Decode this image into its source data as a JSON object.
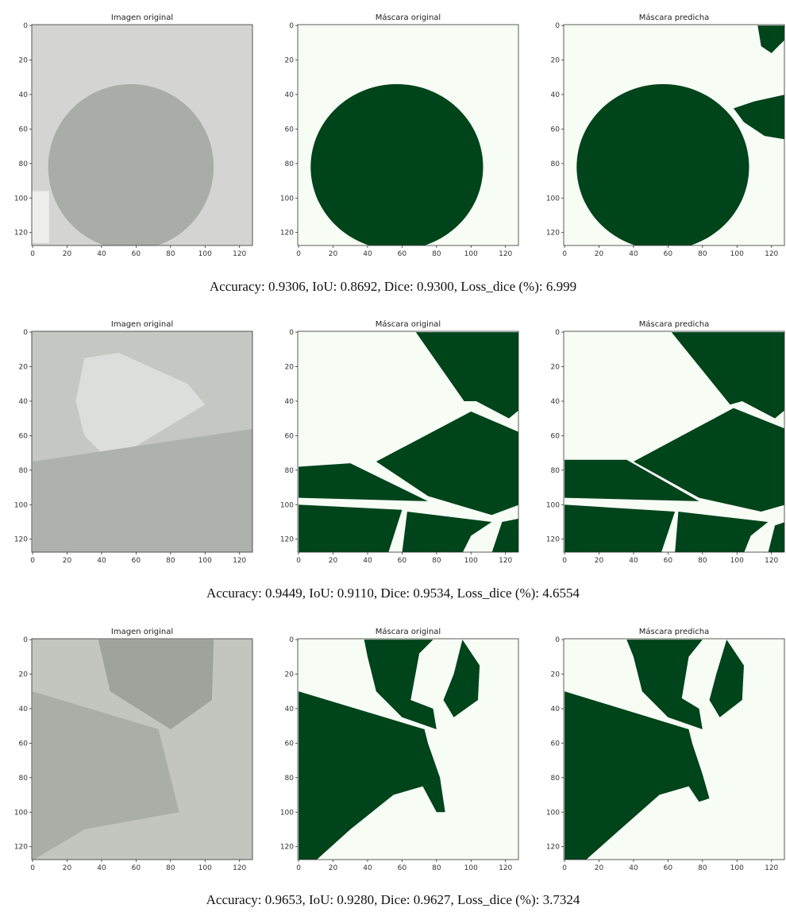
{
  "rows": [
    {
      "panels": [
        {
          "title": "Imagen original"
        },
        {
          "title": "Máscara original"
        },
        {
          "title": "Máscara predicha"
        }
      ],
      "caption": "Accuracy: 0.9306, IoU: 0.8692, Dice: 0.9300, Loss_dice (%): 6.999"
    },
    {
      "panels": [
        {
          "title": "Imagen original"
        },
        {
          "title": "Máscara original"
        },
        {
          "title": "Máscara predicha"
        }
      ],
      "caption": "Accuracy: 0.9449, IoU: 0.9110, Dice: 0.9534, Loss_dice (%): 4.6554"
    },
    {
      "panels": [
        {
          "title": "Imagen original"
        },
        {
          "title": "Máscara original"
        },
        {
          "title": "Máscara predicha"
        }
      ],
      "caption": "Accuracy: 0.9653, IoU: 0.9280, Dice: 0.9627, Loss_dice (%): 3.7324"
    }
  ],
  "xlim": [
    -0.5,
    127.5
  ],
  "ylim": [
    127.5,
    -0.5
  ],
  "xticks": [
    0,
    20,
    40,
    60,
    80,
    100,
    120
  ],
  "yticks": [
    0,
    20,
    40,
    60,
    80,
    100,
    120
  ]
}
